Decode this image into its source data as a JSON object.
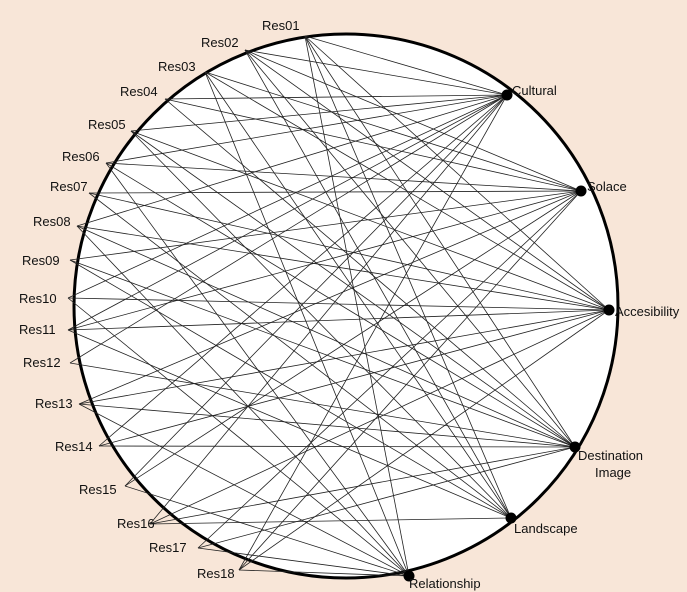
{
  "diagram": {
    "type": "bipartite-circular-network",
    "colors": {
      "background": "#f8e6d8",
      "circle_fill": "#ffffff",
      "stroke": "#000000"
    },
    "respondents": [
      "Res01",
      "Res02",
      "Res03",
      "Res04",
      "Res05",
      "Res06",
      "Res07",
      "Res08",
      "Res09",
      "Res10",
      "Res11",
      "Res12",
      "Res13",
      "Res14",
      "Res15",
      "Res16",
      "Res17",
      "Res18"
    ],
    "themes": [
      {
        "id": "cultural",
        "label": [
          "Cultural"
        ]
      },
      {
        "id": "solace",
        "label": [
          "Solace"
        ]
      },
      {
        "id": "accesibility",
        "label": [
          "Accesibility"
        ]
      },
      {
        "id": "destination",
        "label": [
          "Destination",
          "Image"
        ]
      },
      {
        "id": "landscape",
        "label": [
          "Landscape"
        ]
      },
      {
        "id": "relationship",
        "label": [
          "Relationship"
        ]
      }
    ],
    "edges": [
      [
        "Res01",
        "cultural"
      ],
      [
        "Res01",
        "accesibility"
      ],
      [
        "Res01",
        "destination"
      ],
      [
        "Res01",
        "landscape"
      ],
      [
        "Res01",
        "relationship"
      ],
      [
        "Res02",
        "cultural"
      ],
      [
        "Res02",
        "solace"
      ],
      [
        "Res02",
        "accesibility"
      ],
      [
        "Res02",
        "destination"
      ],
      [
        "Res02",
        "landscape"
      ],
      [
        "Res03",
        "solace"
      ],
      [
        "Res03",
        "accesibility"
      ],
      [
        "Res03",
        "landscape"
      ],
      [
        "Res03",
        "relationship"
      ],
      [
        "Res04",
        "cultural"
      ],
      [
        "Res04",
        "solace"
      ],
      [
        "Res04",
        "destination"
      ],
      [
        "Res05",
        "cultural"
      ],
      [
        "Res05",
        "accesibility"
      ],
      [
        "Res05",
        "destination"
      ],
      [
        "Res05",
        "landscape"
      ],
      [
        "Res06",
        "cultural"
      ],
      [
        "Res06",
        "solace"
      ],
      [
        "Res06",
        "relationship"
      ],
      [
        "Res06",
        "destination"
      ],
      [
        "Res07",
        "solace"
      ],
      [
        "Res07",
        "accesibility"
      ],
      [
        "Res07",
        "landscape"
      ],
      [
        "Res08",
        "cultural"
      ],
      [
        "Res08",
        "destination"
      ],
      [
        "Res08",
        "relationship"
      ],
      [
        "Res08",
        "accesibility"
      ],
      [
        "Res09",
        "solace"
      ],
      [
        "Res09",
        "destination"
      ],
      [
        "Res09",
        "landscape"
      ],
      [
        "Res10",
        "cultural"
      ],
      [
        "Res10",
        "accesibility"
      ],
      [
        "Res10",
        "relationship"
      ],
      [
        "Res11",
        "cultural"
      ],
      [
        "Res11",
        "solace"
      ],
      [
        "Res11",
        "accesibility"
      ],
      [
        "Res11",
        "landscape"
      ],
      [
        "Res12",
        "cultural"
      ],
      [
        "Res12",
        "destination"
      ],
      [
        "Res13",
        "solace"
      ],
      [
        "Res13",
        "accesibility"
      ],
      [
        "Res13",
        "destination"
      ],
      [
        "Res13",
        "relationship"
      ],
      [
        "Res14",
        "cultural"
      ],
      [
        "Res14",
        "accesibility"
      ],
      [
        "Res14",
        "destination"
      ],
      [
        "Res15",
        "cultural"
      ],
      [
        "Res15",
        "solace"
      ],
      [
        "Res15",
        "relationship"
      ],
      [
        "Res16",
        "cultural"
      ],
      [
        "Res16",
        "accesibility"
      ],
      [
        "Res16",
        "landscape"
      ],
      [
        "Res16",
        "destination"
      ],
      [
        "Res17",
        "solace"
      ],
      [
        "Res17",
        "destination"
      ],
      [
        "Res17",
        "relationship"
      ],
      [
        "Res18",
        "cultural"
      ],
      [
        "Res18",
        "solace"
      ],
      [
        "Res18",
        "relationship"
      ],
      [
        "Res18",
        "accesibility"
      ]
    ]
  }
}
